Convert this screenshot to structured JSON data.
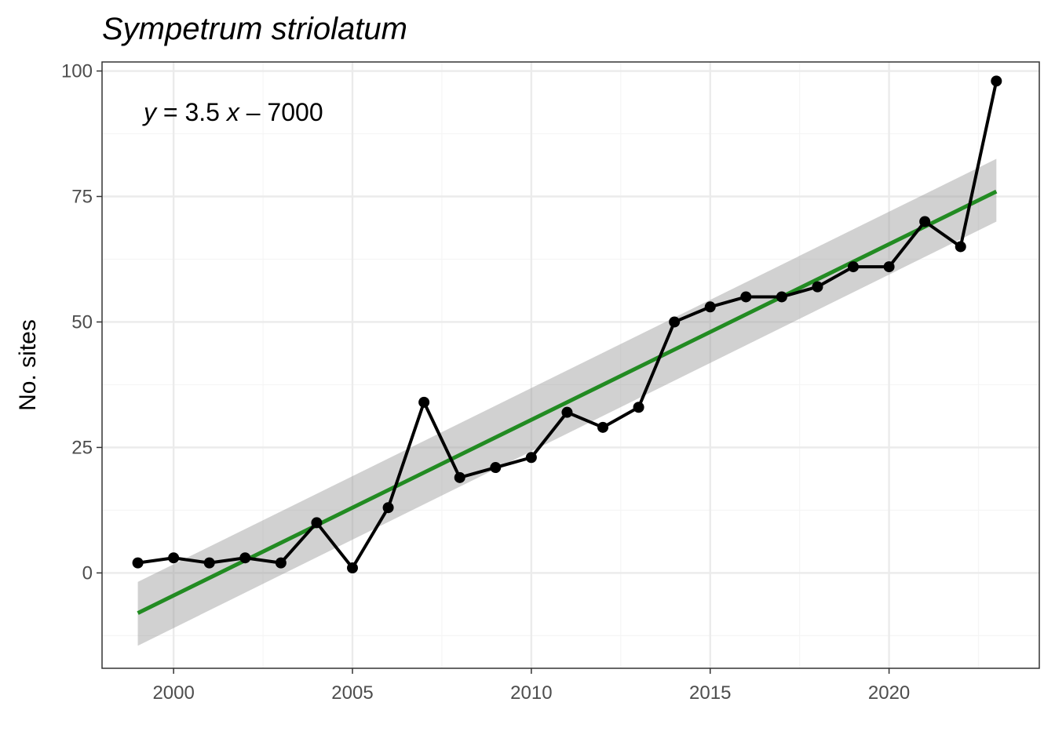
{
  "chart_data": {
    "type": "line",
    "title": "Sympetrum striolatum",
    "xlabel": "",
    "ylabel": "No. sites",
    "xlim": [
      1998,
      2024.2
    ],
    "ylim": [
      -19,
      101.8
    ],
    "x_ticks": [
      2000,
      2005,
      2010,
      2015,
      2020
    ],
    "x_tick_labels": [
      "2000",
      "2005",
      "2010",
      "2015",
      "2020"
    ],
    "y_ticks": [
      0,
      25,
      50,
      75,
      100
    ],
    "y_tick_labels": [
      "0",
      "25",
      "50",
      "75",
      "100"
    ],
    "grid": true,
    "annotation": {
      "y_var": "y",
      "equals": " = 3.5 ",
      "x_var": "x",
      "rest": " – 7000"
    },
    "series": [
      {
        "x": [
          1999,
          2000,
          2001,
          2002,
          2003,
          2004,
          2005,
          2006,
          2007,
          2008,
          2009,
          2010,
          2011,
          2012,
          2013,
          2014,
          2015,
          2016,
          2017,
          2018,
          2019,
          2020,
          2021,
          2022,
          2023
        ],
        "y": [
          2,
          3,
          2,
          3,
          2,
          10,
          1,
          13,
          34,
          19,
          21,
          23,
          32,
          29,
          33,
          50,
          53,
          55,
          55,
          57,
          61,
          61,
          70,
          65,
          98
        ]
      }
    ],
    "trend": {
      "x": [
        1999,
        2023
      ],
      "y": [
        -8,
        76
      ],
      "ci_lower": [
        -14.5,
        70
      ],
      "ci_upper": [
        -1.8,
        82.5
      ]
    },
    "colors": {
      "series": "#000000",
      "trend": "#228b22",
      "ribbon": "#999999",
      "grid_major": "#ebebeb",
      "grid_minor": "#f5f5f5",
      "panel_border": "#333333",
      "tick_label": "#4d4d4d"
    }
  }
}
